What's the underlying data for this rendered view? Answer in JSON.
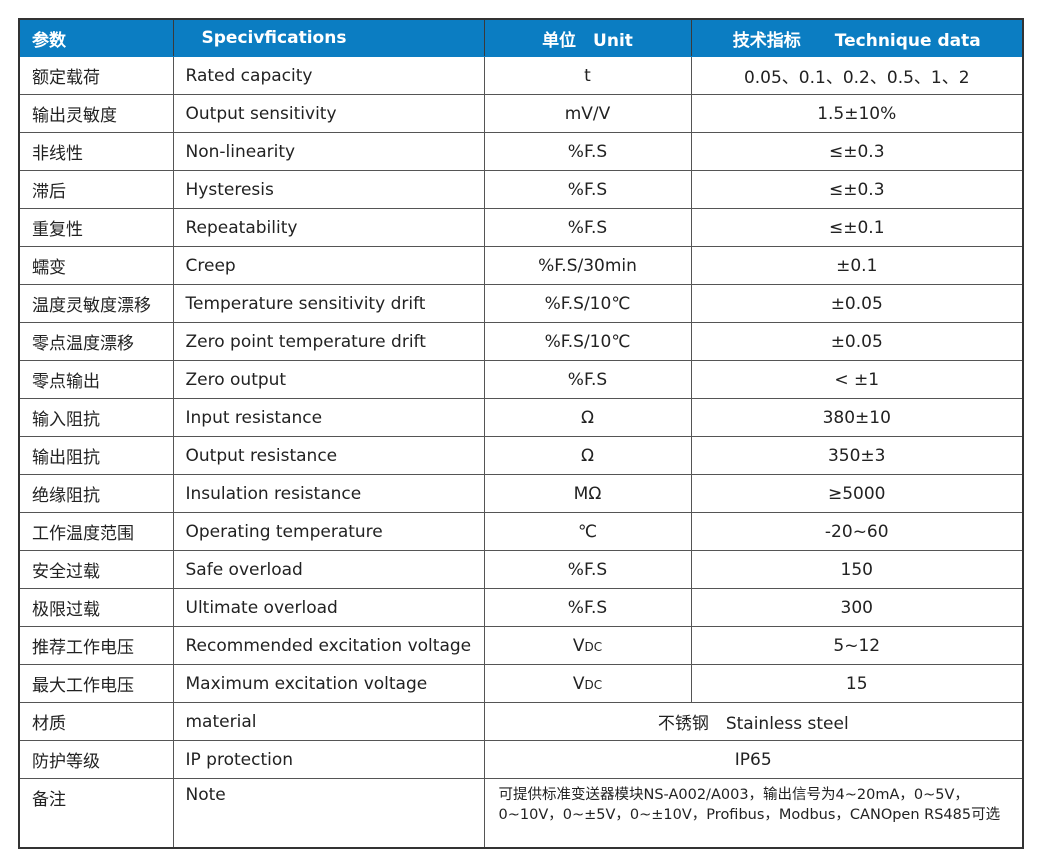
{
  "header": {
    "col_param": "参数",
    "col_spec": "Specivfications",
    "col_unit": "单位　Unit",
    "col_data": "技术指标　　Technique data"
  },
  "rows": [
    {
      "cn": "额定载荷",
      "en": "Rated capacity",
      "unit": "t",
      "value": "0.05、0.1、0.2、0.5、1、2"
    },
    {
      "cn": "输出灵敏度",
      "en": "Output sensitivity",
      "unit": "mV/V",
      "value": "1.5±10%"
    },
    {
      "cn": "非线性",
      "en": "Non-linearity",
      "unit": "%F.S",
      "value": "≤±0.3"
    },
    {
      "cn": "滞后",
      "en": "Hysteresis",
      "unit": "%F.S",
      "value": "≤±0.3"
    },
    {
      "cn": "重复性",
      "en": "Repeatability",
      "unit": "%F.S",
      "value": "≤±0.1"
    },
    {
      "cn": "蠕变",
      "en": "Creep",
      "unit": "%F.S/30min",
      "value": "±0.1"
    },
    {
      "cn": "温度灵敏度漂移",
      "en": "Temperature sensitivity drift",
      "unit": "%F.S/10℃",
      "value": "±0.05"
    },
    {
      "cn": "零点温度漂移",
      "en": "Zero point temperature drift",
      "unit": "%F.S/10℃",
      "value": "±0.05"
    },
    {
      "cn": "零点输出",
      "en": "Zero output",
      "unit": "%F.S",
      "value": "< ±1"
    },
    {
      "cn": "输入阻抗",
      "en": "Input resistance",
      "unit": "Ω",
      "value": "380±10"
    },
    {
      "cn": "输出阻抗",
      "en": "Output resistance",
      "unit": "Ω",
      "value": "350±3"
    },
    {
      "cn": "绝缘阻抗",
      "en": "Insulation resistance",
      "unit": "MΩ",
      "value": "≥5000"
    },
    {
      "cn": "工作温度范围",
      "en": "Operating temperature",
      "unit": "℃",
      "value": "-20~60"
    },
    {
      "cn": "安全过载",
      "en": "Safe overload",
      "unit": "%F.S",
      "value": "150"
    },
    {
      "cn": "极限过载",
      "en": "Ultimate overload",
      "unit": "%F.S",
      "value": "300"
    },
    {
      "cn": "推荐工作电压",
      "en": "Recommended excitation voltage",
      "unit": "V",
      "unit_sub": "DC",
      "value": "5~12"
    },
    {
      "cn": "最大工作电压",
      "en": "Maximum excitation voltage",
      "unit": "V",
      "unit_sub": "DC",
      "value": "15"
    }
  ],
  "material": {
    "cn": "材质",
    "en": "material",
    "value": "不锈钢　Stainless steel"
  },
  "ip": {
    "cn": "防护等级",
    "en": "IP protection",
    "value": "IP65"
  },
  "note": {
    "cn": "备注",
    "en": "Note",
    "line1": "可提供标准变送器模块NS-A002/A003，输出信号为4~20mA，0~5V，",
    "line2": "0~10V，0~±5V，0~±10V，Profibus，Modbus，CANOpen  RS485可选"
  },
  "colors": {
    "header_bg": "#0b7dc2",
    "header_text": "#ffffff"
  }
}
